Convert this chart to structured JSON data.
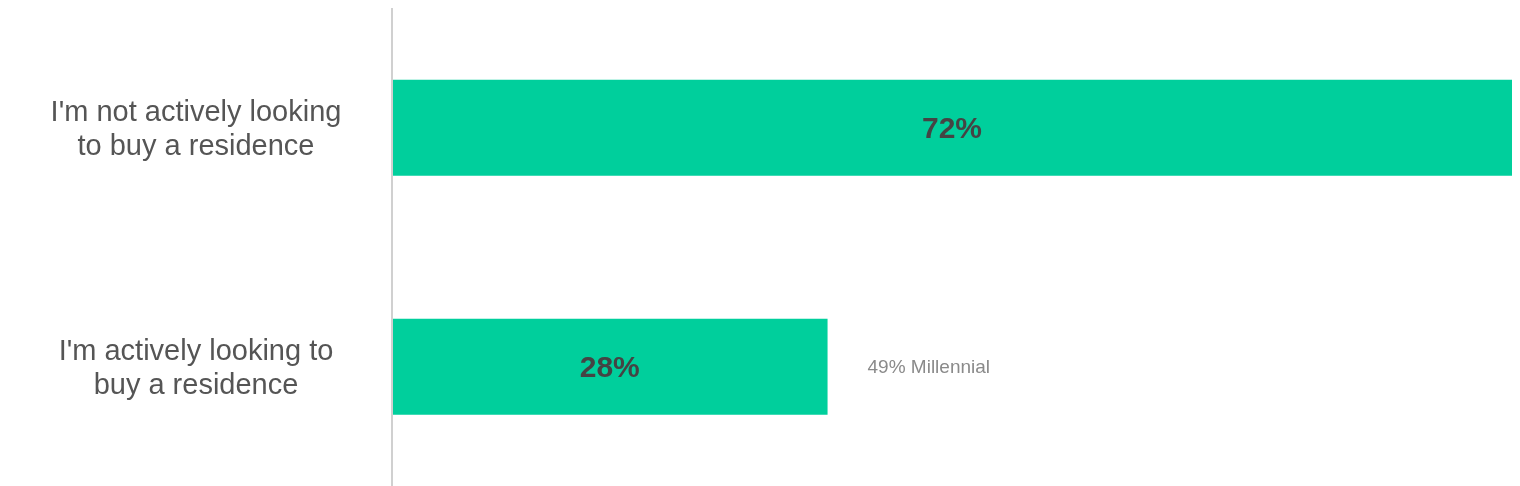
{
  "chart_data": {
    "type": "bar",
    "orientation": "horizontal",
    "categories": [
      "I'm not actively looking to buy a residence",
      "I'm actively looking to buy a residence"
    ],
    "values": [
      72,
      28
    ],
    "color": "#00cf9c",
    "value_labels": [
      "72%",
      "28%"
    ],
    "xlim": [
      0,
      72
    ],
    "annotations": [
      "49% Millennial"
    ]
  }
}
